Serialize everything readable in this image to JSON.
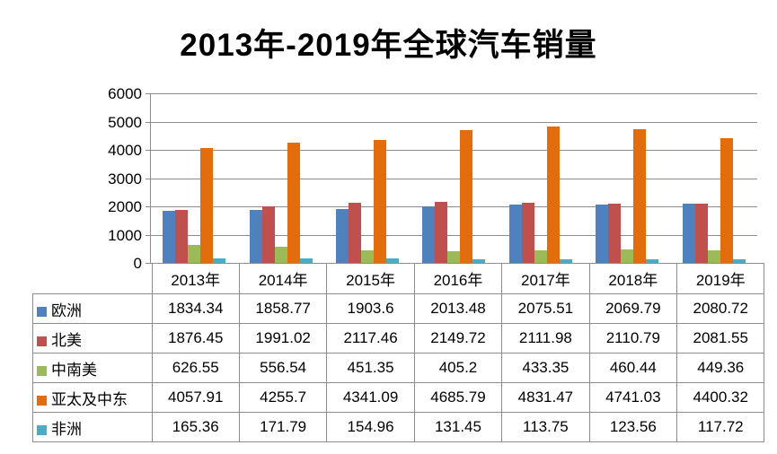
{
  "chart_data": {
    "type": "bar",
    "title": "2013年-2019年全球汽车销量",
    "categories": [
      "2013年",
      "2014年",
      "2015年",
      "2016年",
      "2017年",
      "2018年",
      "2019年"
    ],
    "series": [
      {
        "key": "europe",
        "name": "欧洲",
        "color": "#4E81BD",
        "values": [
          1834.34,
          1858.77,
          1903.6,
          2013.48,
          2075.51,
          2069.79,
          2080.72
        ]
      },
      {
        "key": "north-america",
        "name": "北美",
        "color": "#C0504D",
        "values": [
          1876.45,
          1991.02,
          2117.46,
          2149.72,
          2111.98,
          2110.79,
          2081.55
        ]
      },
      {
        "key": "central-south-america",
        "name": "中南美",
        "color": "#9BBB59",
        "values": [
          626.55,
          556.54,
          451.35,
          405.2,
          433.35,
          460.44,
          449.36
        ]
      },
      {
        "key": "asia-pacific-middle-east",
        "name": "亚太及中东",
        "color": "#E46C0A",
        "values": [
          4057.91,
          4255.7,
          4341.09,
          4685.79,
          4831.47,
          4741.03,
          4400.32
        ]
      },
      {
        "key": "africa",
        "name": "非洲",
        "color": "#4BACC6",
        "values": [
          165.36,
          171.79,
          154.96,
          131.45,
          113.75,
          123.56,
          117.72
        ]
      }
    ],
    "ylim": [
      0,
      6000
    ],
    "ytick_step": 1000,
    "ytick_labels": [
      "0",
      "1000",
      "2000",
      "3000",
      "4000",
      "5000",
      "6000"
    ],
    "grid": true,
    "legend_position": "data-table-left-column",
    "data_table_shown": true
  },
  "colors": {
    "gridline": "#8C8C8C",
    "table_border": "#8C8C8C",
    "text": "#000000",
    "background": "#FFFFFF"
  }
}
